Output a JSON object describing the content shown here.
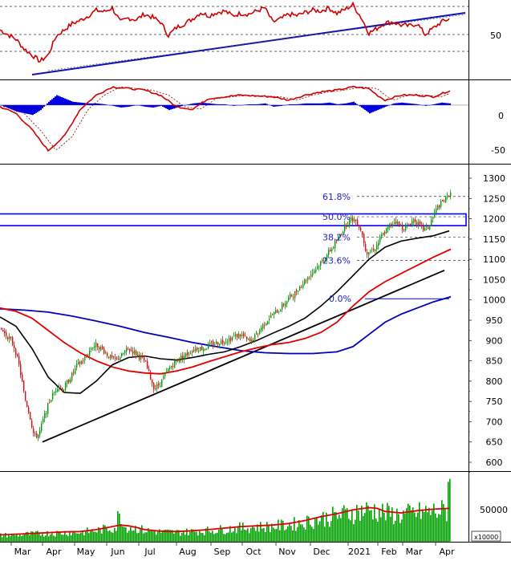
{
  "chart_data": {
    "type": "line",
    "colors": {
      "price_up": "#00a000",
      "price_down": "#ff0000",
      "ma_short": "#000000",
      "ma_mid": "#e00000",
      "ma_long": "#0000c0",
      "trendline": "#000000",
      "rsi": "#d00000",
      "rsi_trend": "#1010b0",
      "macd_line": "#d00000",
      "macd_hist": "#0000e0",
      "fib_box": "#0000ff",
      "fib_text": "#2020c0",
      "volume_bars": "#00a000",
      "volume_ma": "#e00000",
      "grid": "#000000",
      "background": "#ffffff"
    },
    "x_axis": {
      "labels": [
        "Mar",
        "Apr",
        "May",
        "Jun",
        "Jul",
        "Aug",
        "Sep",
        "Oct",
        "Nov",
        "Dec",
        "2021",
        "Feb",
        "Mar",
        "Apr"
      ]
    },
    "panels": {
      "rsi": {
        "ticks": [
          "50"
        ],
        "ylim": [
          0,
          100
        ],
        "grid": true
      },
      "macd": {
        "ticks": [
          "0",
          "-50"
        ],
        "ylim": [
          -70,
          30
        ]
      },
      "price": {
        "ticks": [
          "1300",
          "1250",
          "1200",
          "1150",
          "1100",
          "1050",
          "1000",
          "950",
          "900",
          "850",
          "800",
          "750",
          "700",
          "650",
          "600"
        ],
        "ylim": [
          585,
          1310
        ],
        "fib_levels": [
          {
            "label": "61.8%",
            "value": 1255
          },
          {
            "label": "50.0%",
            "value": 1205
          },
          {
            "label": "38.2%",
            "value": 1155
          },
          {
            "label": "23.6%",
            "value": 1097
          },
          {
            "label": "0.0%",
            "value": 1003
          }
        ],
        "resistance_zone": [
          1183,
          1212
        ]
      },
      "volume": {
        "ticks": [
          "50000"
        ],
        "multiplier_label": "x10000",
        "ylim": [
          0,
          90000
        ]
      }
    },
    "series": [
      {
        "key": "close",
        "x": [
          0,
          6,
          12,
          18,
          24,
          30,
          36,
          42,
          48,
          54,
          60,
          66,
          72,
          78,
          84,
          90,
          96,
          102,
          108,
          114,
          120,
          126,
          132,
          138,
          144,
          150,
          156,
          162,
          168,
          174,
          180,
          186,
          192,
          198,
          204,
          210,
          216,
          222,
          228,
          234,
          240,
          246,
          252,
          258,
          264,
          270,
          276,
          282,
          288,
          294,
          300,
          306,
          312,
          318,
          324,
          330,
          336,
          342,
          348,
          354,
          360,
          366,
          372,
          378,
          384,
          390,
          396,
          402,
          408,
          414,
          420,
          426,
          432,
          438,
          444,
          450,
          456,
          462,
          468,
          474,
          480,
          486,
          492,
          498,
          504,
          510,
          516,
          522,
          528,
          534,
          540,
          546,
          552,
          558,
          561
        ],
        "y": [
          930,
          915,
          905,
          880,
          830,
          760,
          720,
          662,
          670,
          710,
          745,
          770,
          790,
          780,
          800,
          818,
          840,
          850,
          865,
          885,
          890,
          880,
          868,
          856,
          852,
          862,
          875,
          878,
          870,
          858,
          848,
          812,
          782,
          792,
          810,
          830,
          845,
          855,
          862,
          868,
          878,
          882,
          880,
          885,
          892,
          895,
          898,
          902,
          907,
          912,
          915,
          903,
          895,
          912,
          930,
          945,
          958,
          968,
          978,
          992,
          1005,
          1015,
          1030,
          1045,
          1058,
          1070,
          1085,
          1100,
          1115,
          1130,
          1150,
          1170,
          1190,
          1200,
          1195,
          1170,
          1118,
          1122,
          1130,
          1155,
          1170,
          1185,
          1195,
          1182,
          1178,
          1188,
          1200,
          1183,
          1172,
          1180,
          1210,
          1232,
          1243,
          1255,
          1268
        ]
      },
      {
        "key": "ma_short",
        "x": [
          0,
          20,
          40,
          60,
          80,
          100,
          120,
          140,
          160,
          180,
          200,
          220,
          240,
          260,
          280,
          300,
          320,
          340,
          360,
          380,
          400,
          420,
          440,
          460,
          480,
          500,
          520,
          540,
          560
        ],
        "y": [
          958,
          935,
          880,
          810,
          772,
          770,
          800,
          840,
          858,
          862,
          855,
          852,
          858,
          866,
          872,
          885,
          900,
          918,
          935,
          955,
          985,
          1020,
          1060,
          1100,
          1130,
          1145,
          1152,
          1158,
          1170
        ]
      },
      {
        "key": "ma_mid",
        "x": [
          0,
          20,
          40,
          60,
          80,
          100,
          120,
          140,
          160,
          180,
          200,
          220,
          240,
          260,
          280,
          300,
          320,
          340,
          360,
          380,
          400,
          420,
          440,
          460,
          480,
          500,
          520,
          540,
          562
        ],
        "y": [
          980,
          972,
          955,
          925,
          895,
          870,
          850,
          835,
          825,
          820,
          818,
          825,
          835,
          848,
          860,
          872,
          882,
          890,
          895,
          905,
          920,
          945,
          985,
          1020,
          1045,
          1065,
          1085,
          1105,
          1125
        ]
      },
      {
        "key": "ma_long",
        "x": [
          0,
          30,
          60,
          90,
          120,
          150,
          180,
          210,
          240,
          270,
          300,
          330,
          360,
          390,
          420,
          440,
          460,
          480,
          500,
          520,
          540,
          562
        ],
        "y": [
          978,
          975,
          970,
          960,
          948,
          935,
          920,
          908,
          895,
          885,
          875,
          870,
          868,
          868,
          872,
          885,
          915,
          945,
          965,
          980,
          995,
          1008
        ]
      },
      {
        "key": "trendline_main",
        "x": [
          53,
          554
        ],
        "y": [
          650,
          1073
        ]
      },
      {
        "key": "fib_zero",
        "x": [
          455,
          560
        ],
        "y": [
          1003,
          1003
        ]
      },
      {
        "key": "rsi",
        "x": [
          0,
          10,
          20,
          30,
          40,
          50,
          60,
          70,
          80,
          90,
          100,
          110,
          120,
          130,
          140,
          150,
          160,
          170,
          180,
          190,
          200,
          210,
          220,
          230,
          240,
          250,
          260,
          270,
          280,
          290,
          300,
          310,
          320,
          330,
          340,
          350,
          360,
          370,
          380,
          390,
          400,
          410,
          420,
          430,
          440,
          450,
          460,
          470,
          480,
          490,
          500,
          510,
          520,
          530,
          540,
          550,
          560
        ],
        "y": [
          62,
          56,
          50,
          38,
          30,
          22,
          30,
          54,
          62,
          70,
          74,
          80,
          87,
          85,
          90,
          72,
          77,
          75,
          82,
          78,
          72,
          55,
          65,
          70,
          76,
          84,
          80,
          84,
          86,
          80,
          83,
          82,
          86,
          90,
          72,
          76,
          82,
          80,
          84,
          87,
          86,
          90,
          83,
          88,
          94,
          78,
          58,
          64,
          71,
          72,
          68,
          67,
          70,
          56,
          64,
          72,
          76
        ]
      },
      {
        "key": "rsi_trend",
        "x": [
          40,
          580
        ],
        "y": [
          8,
          85
        ]
      },
      {
        "key": "macd_line",
        "x": [
          0,
          20,
          40,
          60,
          80,
          100,
          120,
          140,
          160,
          180,
          200,
          220,
          240,
          260,
          280,
          300,
          320,
          340,
          360,
          380,
          400,
          420,
          440,
          460,
          470,
          480,
          500,
          520,
          540,
          562
        ],
        "y": [
          -2,
          -10,
          -30,
          -55,
          -38,
          -5,
          12,
          22,
          20,
          18,
          12,
          -2,
          -5,
          8,
          10,
          12,
          11,
          10,
          6,
          12,
          16,
          18,
          22,
          20,
          12,
          6,
          12,
          12,
          10,
          18
        ]
      },
      {
        "key": "macd_hist",
        "x": [
          0,
          10,
          20,
          30,
          40,
          50,
          60,
          70,
          80,
          90,
          100,
          110,
          120,
          130,
          140,
          150,
          160,
          170,
          180,
          190,
          200,
          210,
          220,
          230,
          240,
          250,
          260,
          270,
          280,
          290,
          300,
          310,
          320,
          330,
          340,
          350,
          360,
          370,
          380,
          390,
          400,
          410,
          420,
          430,
          440,
          450,
          460,
          470,
          480,
          490,
          500,
          510,
          520,
          530,
          540,
          550,
          560
        ],
        "y": [
          0,
          -4,
          -8,
          -10,
          -12,
          -6,
          4,
          12,
          8,
          4,
          3,
          2,
          2,
          1,
          -1,
          -3,
          -2,
          0,
          -2,
          -3,
          -1,
          -6,
          -3,
          0,
          2,
          3,
          2,
          1,
          1,
          -1,
          0,
          1,
          1,
          2,
          -2,
          -1,
          1,
          1,
          2,
          2,
          2,
          3,
          1,
          2,
          4,
          -3,
          -10,
          -6,
          -2,
          2,
          3,
          2,
          1,
          -1,
          1,
          3,
          2
        ]
      },
      {
        "key": "volume_ma",
        "x": [
          0,
          20,
          40,
          60,
          80,
          100,
          120,
          140,
          150,
          160,
          170,
          180,
          200,
          220,
          240,
          260,
          280,
          300,
          320,
          340,
          360,
          380,
          400,
          420,
          440,
          460,
          470,
          480,
          500,
          520,
          540,
          560
        ],
        "y": [
          9000,
          10000,
          11000,
          12000,
          13000,
          13500,
          16000,
          20000,
          22000,
          21000,
          19000,
          16000,
          14000,
          13500,
          14500,
          16000,
          18000,
          20000,
          21000,
          22000,
          24000,
          28000,
          33000,
          37000,
          42000,
          45000,
          44000,
          40000,
          38000,
          41000,
          43000,
          44000
        ]
      }
    ]
  }
}
